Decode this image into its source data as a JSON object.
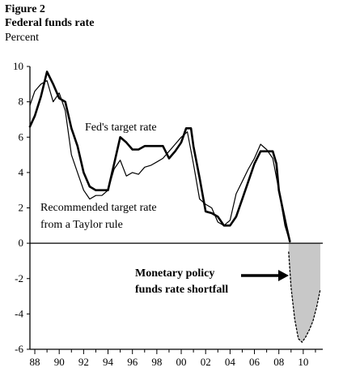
{
  "figure_label": "Figure 2",
  "chart_data": {
    "type": "line",
    "title": "Federal funds rate",
    "ylabel": "Percent",
    "xlabel": "",
    "xlim": [
      1987.6,
      2011.6
    ],
    "ylim": [
      -6,
      10
    ],
    "yticks": [
      10,
      8,
      6,
      4,
      2,
      0,
      -2,
      -4,
      -6
    ],
    "xtick_labels": [
      "88",
      "90",
      "92",
      "94",
      "96",
      "98",
      "00",
      "02",
      "04",
      "06",
      "08",
      "10"
    ],
    "xtick_years": [
      1988,
      1990,
      1992,
      1994,
      1996,
      1998,
      2000,
      2002,
      2004,
      2006,
      2008,
      2010
    ],
    "series": [
      {
        "name": "Fed's target rate",
        "style": "thick",
        "color": "#000000",
        "x": [
          1987.6,
          1988.0,
          1988.5,
          1989.0,
          1989.5,
          1990.0,
          1990.5,
          1991.0,
          1991.5,
          1992.0,
          1992.5,
          1993.0,
          1993.5,
          1994.0,
          1994.5,
          1995.0,
          1995.5,
          1996.0,
          1996.5,
          1997.0,
          1997.5,
          1998.0,
          1998.5,
          1999.0,
          1999.5,
          2000.0,
          2000.4,
          2000.8,
          2001.0,
          2001.5,
          2002.0,
          2002.5,
          2003.0,
          2003.5,
          2004.0,
          2004.5,
          2005.0,
          2005.5,
          2006.0,
          2006.5,
          2007.0,
          2007.5,
          2007.8,
          2008.0,
          2008.3,
          2008.6,
          2008.9
        ],
        "values": [
          6.6,
          7.2,
          8.3,
          9.7,
          9.0,
          8.2,
          8.0,
          6.5,
          5.5,
          4.0,
          3.2,
          3.0,
          3.0,
          3.0,
          4.5,
          6.0,
          5.7,
          5.3,
          5.3,
          5.5,
          5.5,
          5.5,
          5.5,
          4.8,
          5.2,
          5.7,
          6.5,
          6.5,
          5.5,
          3.7,
          1.8,
          1.7,
          1.5,
          1.0,
          1.0,
          1.5,
          2.5,
          3.5,
          4.5,
          5.2,
          5.2,
          5.2,
          4.5,
          3.0,
          2.0,
          1.0,
          0.1
        ]
      },
      {
        "name": "Recommended target rate from a Taylor rule",
        "style": "thin",
        "color": "#000000",
        "x": [
          1987.6,
          1988.0,
          1988.5,
          1989.0,
          1989.5,
          1990.0,
          1990.5,
          1991.0,
          1991.5,
          1992.0,
          1992.5,
          1993.0,
          1993.5,
          1994.0,
          1994.5,
          1995.0,
          1995.5,
          1996.0,
          1996.5,
          1997.0,
          1997.5,
          1998.0,
          1998.5,
          1999.0,
          1999.5,
          2000.0,
          2000.5,
          2001.0,
          2001.5,
          2002.0,
          2002.5,
          2003.0,
          2003.5,
          2004.0,
          2004.5,
          2005.0,
          2005.5,
          2006.0,
          2006.5,
          2007.0,
          2007.5,
          2008.0,
          2008.5,
          2008.8
        ],
        "values": [
          7.8,
          8.6,
          9.0,
          9.2,
          8.0,
          8.5,
          7.5,
          5.0,
          4.0,
          3.0,
          2.5,
          2.7,
          2.7,
          3.0,
          4.2,
          4.7,
          3.8,
          4.0,
          3.9,
          4.3,
          4.4,
          4.6,
          4.8,
          5.2,
          5.6,
          6.0,
          6.3,
          4.5,
          2.5,
          2.2,
          2.0,
          1.2,
          1.0,
          1.3,
          2.8,
          3.5,
          4.2,
          4.8,
          5.6,
          5.3,
          4.8,
          3.0,
          1.0,
          0.3
        ]
      },
      {
        "name": "",
        "style": "dotted",
        "color": "#000000",
        "x": [
          2008.8,
          2009.0,
          2009.3,
          2009.6,
          2009.9,
          2010.2,
          2010.5,
          2010.8,
          2011.1,
          2011.4
        ],
        "values": [
          -0.5,
          -2.5,
          -4.3,
          -5.4,
          -5.6,
          -5.3,
          -4.9,
          -4.4,
          -3.6,
          -2.6
        ]
      }
    ],
    "annotations": [
      {
        "lines": [
          "Fed's target rate"
        ],
        "bold": false
      },
      {
        "lines": [
          "Recommended target rate",
          "from a Taylor rule"
        ],
        "bold": false
      },
      {
        "lines": [
          "Monetary policy",
          "funds rate shortfall"
        ],
        "bold": true
      }
    ],
    "shaded_region": {
      "x_from": 2008.8,
      "x_to": 2011.4,
      "fill": "#c8c8c8"
    },
    "grid": false
  }
}
